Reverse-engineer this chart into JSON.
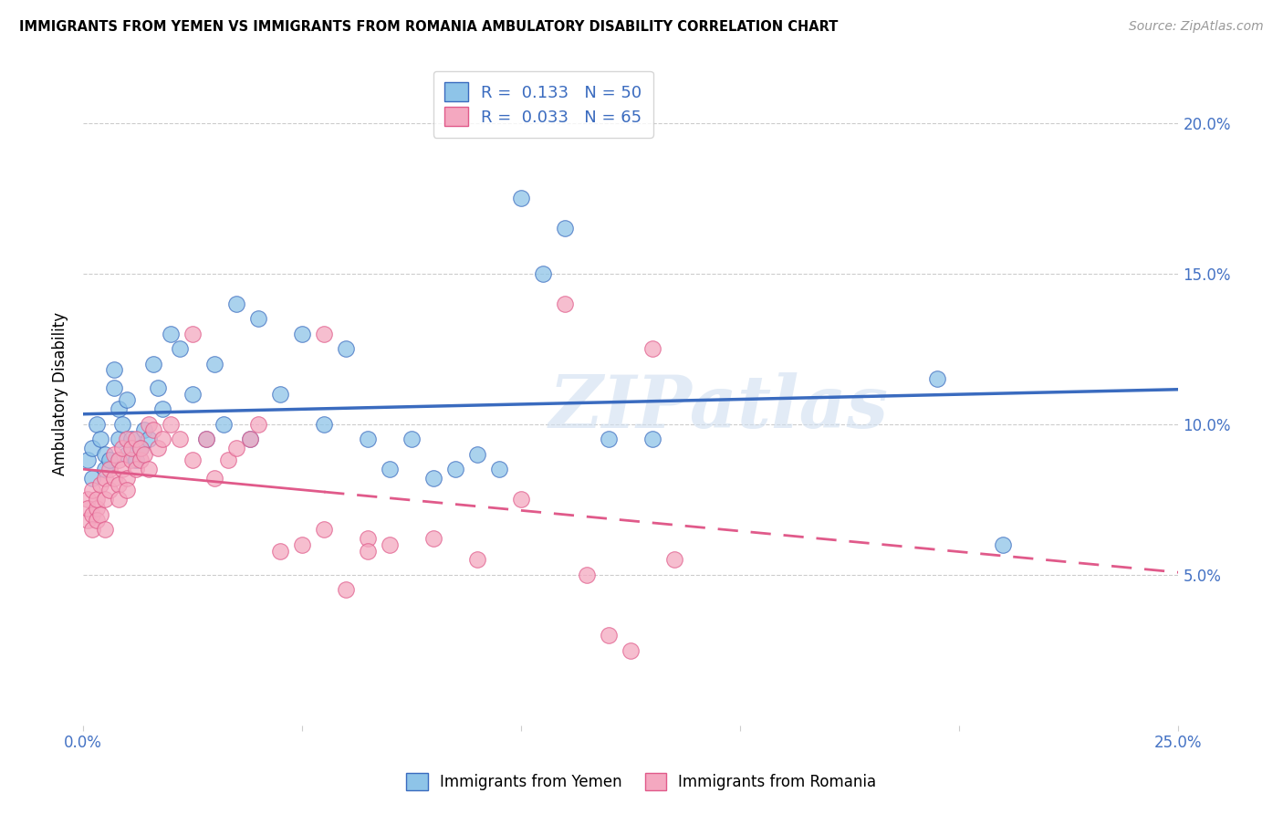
{
  "title": "IMMIGRANTS FROM YEMEN VS IMMIGRANTS FROM ROMANIA AMBULATORY DISABILITY CORRELATION CHART",
  "source": "Source: ZipAtlas.com",
  "ylabel": "Ambulatory Disability",
  "xlim": [
    0.0,
    0.25
  ],
  "ylim": [
    0.0,
    0.22
  ],
  "xticks": [
    0.0,
    0.05,
    0.1,
    0.15,
    0.2,
    0.25
  ],
  "yticks": [
    0.05,
    0.1,
    0.15,
    0.2
  ],
  "ytick_labels": [
    "5.0%",
    "10.0%",
    "15.0%",
    "20.0%"
  ],
  "xtick_labels_bottom": [
    "0.0%",
    "",
    "",
    "",
    "",
    "25.0%"
  ],
  "color_yemen": "#8ec4e8",
  "color_romania": "#f4a8c0",
  "color_trendline_yemen": "#3a6bbf",
  "color_trendline_romania": "#e05a8a",
  "color_axis": "#4472c4",
  "watermark": "ZIPatlas",
  "legend_line1": "R =  0.133   N = 50",
  "legend_line2": "R =  0.033   N = 65",
  "yemen_x": [
    0.001,
    0.002,
    0.002,
    0.003,
    0.004,
    0.005,
    0.005,
    0.006,
    0.007,
    0.007,
    0.008,
    0.008,
    0.009,
    0.01,
    0.01,
    0.011,
    0.012,
    0.013,
    0.014,
    0.015,
    0.016,
    0.017,
    0.018,
    0.02,
    0.022,
    0.025,
    0.028,
    0.03,
    0.032,
    0.035,
    0.038,
    0.04,
    0.045,
    0.05,
    0.055,
    0.06,
    0.065,
    0.07,
    0.075,
    0.08,
    0.085,
    0.09,
    0.095,
    0.1,
    0.105,
    0.11,
    0.12,
    0.13,
    0.195,
    0.21
  ],
  "yemen_y": [
    0.088,
    0.082,
    0.092,
    0.1,
    0.095,
    0.085,
    0.09,
    0.088,
    0.112,
    0.118,
    0.105,
    0.095,
    0.1,
    0.09,
    0.108,
    0.095,
    0.088,
    0.092,
    0.098,
    0.095,
    0.12,
    0.112,
    0.105,
    0.13,
    0.125,
    0.11,
    0.095,
    0.12,
    0.1,
    0.14,
    0.095,
    0.135,
    0.11,
    0.13,
    0.1,
    0.125,
    0.095,
    0.085,
    0.095,
    0.082,
    0.085,
    0.09,
    0.085,
    0.175,
    0.15,
    0.165,
    0.095,
    0.095,
    0.115,
    0.06
  ],
  "romania_x": [
    0.001,
    0.001,
    0.001,
    0.002,
    0.002,
    0.002,
    0.003,
    0.003,
    0.003,
    0.004,
    0.004,
    0.005,
    0.005,
    0.005,
    0.006,
    0.006,
    0.007,
    0.007,
    0.008,
    0.008,
    0.008,
    0.009,
    0.009,
    0.01,
    0.01,
    0.01,
    0.011,
    0.011,
    0.012,
    0.012,
    0.013,
    0.013,
    0.014,
    0.015,
    0.015,
    0.016,
    0.017,
    0.018,
    0.02,
    0.022,
    0.025,
    0.025,
    0.028,
    0.03,
    0.033,
    0.035,
    0.038,
    0.04,
    0.045,
    0.05,
    0.055,
    0.06,
    0.065,
    0.07,
    0.08,
    0.09,
    0.1,
    0.11,
    0.12,
    0.13,
    0.055,
    0.065,
    0.115,
    0.125,
    0.135
  ],
  "romania_y": [
    0.075,
    0.068,
    0.072,
    0.07,
    0.065,
    0.078,
    0.072,
    0.068,
    0.075,
    0.07,
    0.08,
    0.075,
    0.065,
    0.082,
    0.078,
    0.085,
    0.082,
    0.09,
    0.08,
    0.075,
    0.088,
    0.092,
    0.085,
    0.082,
    0.078,
    0.095,
    0.088,
    0.092,
    0.085,
    0.095,
    0.088,
    0.092,
    0.09,
    0.085,
    0.1,
    0.098,
    0.092,
    0.095,
    0.1,
    0.095,
    0.088,
    0.13,
    0.095,
    0.082,
    0.088,
    0.092,
    0.095,
    0.1,
    0.058,
    0.06,
    0.065,
    0.045,
    0.062,
    0.06,
    0.062,
    0.055,
    0.075,
    0.14,
    0.03,
    0.125,
    0.13,
    0.058,
    0.05,
    0.025,
    0.055
  ]
}
